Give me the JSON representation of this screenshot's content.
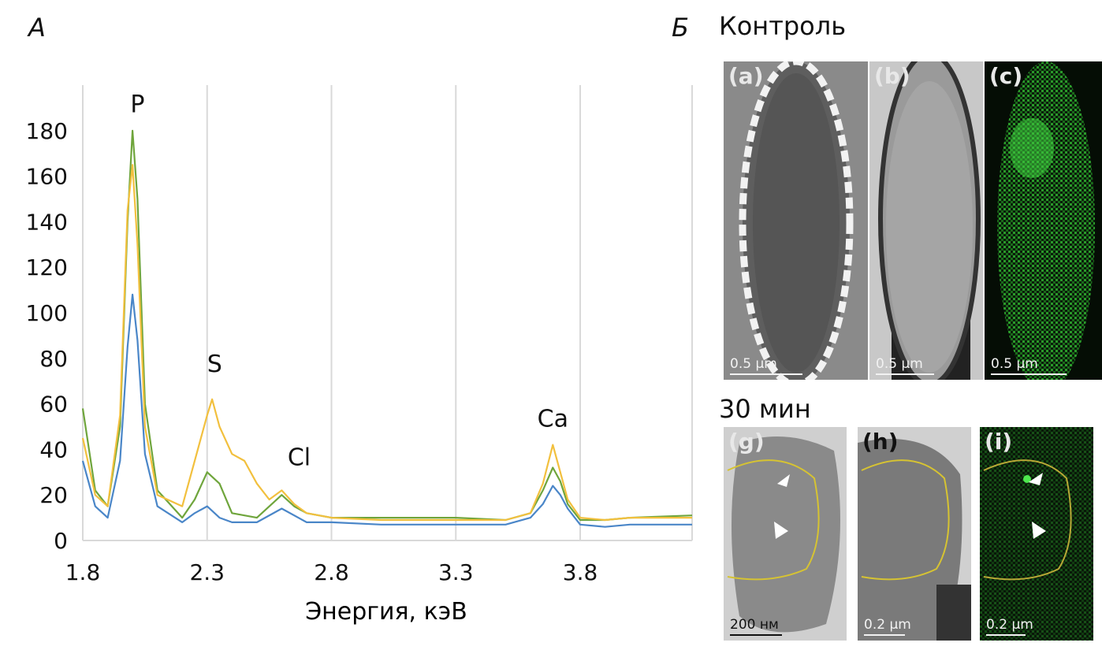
{
  "panel_a": {
    "letter": "А"
  },
  "panel_b": {
    "letter": "Б",
    "control_title": "Контроль",
    "time_title": "30 мин"
  },
  "chart_data": {
    "type": "line",
    "xlabel": "Энергия, кэВ",
    "ylabel": "",
    "xlim": [
      1.8,
      4.25
    ],
    "ylim": [
      0,
      200
    ],
    "x_ticks": [
      "1.8",
      "2.3",
      "2.8",
      "3.3",
      "3.8"
    ],
    "y_ticks": [
      "0",
      "20",
      "40",
      "60",
      "80",
      "100",
      "120",
      "140",
      "160",
      "180"
    ],
    "grid": "vertical",
    "annotations": [
      {
        "text": "P",
        "x": 2.02,
        "y": 188
      },
      {
        "text": "S",
        "x": 2.33,
        "y": 74
      },
      {
        "text": "Cl",
        "x": 2.67,
        "y": 33
      },
      {
        "text": "Ca",
        "x": 3.69,
        "y": 50
      }
    ],
    "series": [
      {
        "color": "#4a86c8",
        "x": [
          1.8,
          1.85,
          1.9,
          1.95,
          1.98,
          2.0,
          2.02,
          2.05,
          2.1,
          2.2,
          2.25,
          2.3,
          2.35,
          2.4,
          2.5,
          2.6,
          2.7,
          2.8,
          3.0,
          3.3,
          3.5,
          3.6,
          3.65,
          3.69,
          3.72,
          3.75,
          3.8,
          3.9,
          4.0,
          4.25
        ],
        "y": [
          35,
          15,
          10,
          35,
          85,
          108,
          88,
          38,
          15,
          8,
          12,
          15,
          10,
          8,
          8,
          14,
          8,
          8,
          7,
          7,
          7,
          10,
          16,
          24,
          20,
          14,
          7,
          6,
          7,
          7
        ]
      },
      {
        "color": "#6fa53c",
        "x": [
          1.8,
          1.85,
          1.9,
          1.95,
          1.98,
          2.0,
          2.02,
          2.05,
          2.1,
          2.2,
          2.25,
          2.3,
          2.35,
          2.4,
          2.5,
          2.6,
          2.65,
          2.7,
          2.8,
          3.0,
          3.3,
          3.5,
          3.6,
          3.65,
          3.69,
          3.72,
          3.75,
          3.8,
          3.9,
          4.0,
          4.25
        ],
        "y": [
          58,
          22,
          15,
          50,
          140,
          180,
          150,
          60,
          22,
          10,
          18,
          30,
          25,
          12,
          10,
          20,
          15,
          12,
          10,
          10,
          10,
          9,
          12,
          22,
          32,
          26,
          16,
          9,
          9,
          10,
          11
        ]
      },
      {
        "color": "#f2c03e",
        "x": [
          1.8,
          1.85,
          1.9,
          1.95,
          1.98,
          2.0,
          2.02,
          2.05,
          2.1,
          2.2,
          2.25,
          2.3,
          2.32,
          2.35,
          2.4,
          2.45,
          2.5,
          2.55,
          2.6,
          2.65,
          2.7,
          2.8,
          3.0,
          3.3,
          3.5,
          3.6,
          3.65,
          3.69,
          3.72,
          3.75,
          3.8,
          3.9,
          4.0,
          4.25
        ],
        "y": [
          45,
          20,
          15,
          55,
          145,
          165,
          130,
          50,
          20,
          15,
          35,
          55,
          62,
          50,
          38,
          35,
          25,
          18,
          22,
          16,
          12,
          10,
          9,
          9,
          9,
          12,
          25,
          42,
          30,
          18,
          10,
          9,
          10,
          10
        ]
      }
    ]
  },
  "micrographs": [
    {
      "tag": "(a)",
      "scale": "0.5 μm"
    },
    {
      "tag": "(b)",
      "scale": "0.5 μm"
    },
    {
      "tag": "(c)",
      "scale": "0.5 μm"
    },
    {
      "tag": "(g)",
      "scale": "200 нм"
    },
    {
      "tag": "(h)",
      "scale": "0.2 μm"
    },
    {
      "tag": "(i)",
      "scale": "0.2 μm"
    }
  ]
}
